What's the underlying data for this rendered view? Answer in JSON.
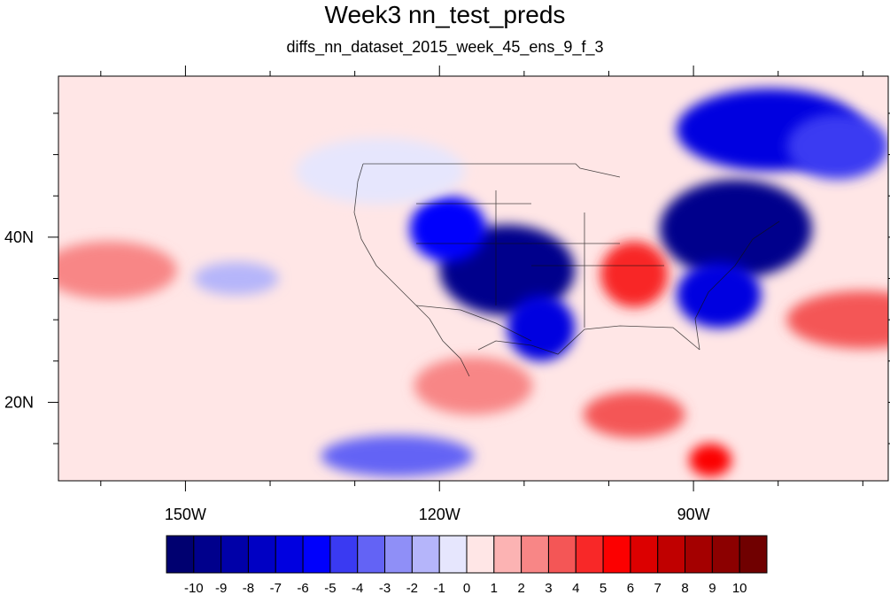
{
  "title": "Week3 nn_test_preds",
  "subtitle": "diffs_nn_dataset_2015_week_45_ens_9_f_3",
  "map": {
    "projection": "cylindrical-equidistant",
    "lon_range": [
      -165,
      -67
    ],
    "lat_range": [
      10.5,
      59.5
    ],
    "lon_ticks": [
      {
        "value": -150,
        "label": "150W"
      },
      {
        "value": -120,
        "label": "120W"
      },
      {
        "value": -90,
        "label": "90W"
      }
    ],
    "lat_ticks": [
      {
        "value": 40,
        "label": "40N"
      },
      {
        "value": 20,
        "label": "20N"
      }
    ],
    "background_value": 0.5
  },
  "colorbar": {
    "labels": [
      "-10",
      "-9",
      "-8",
      "-7",
      "-6",
      "-5",
      "-4",
      "-3",
      "-2",
      "-1",
      "0",
      "1",
      "2",
      "3",
      "4",
      "5",
      "6",
      "7",
      "8",
      "9",
      "10"
    ],
    "colors": [
      "#000070",
      "#00008c",
      "#0000a8",
      "#0000c4",
      "#0000e0",
      "#0000fc",
      "#3a3af2",
      "#6363f5",
      "#8f8ff7",
      "#b5b5fa",
      "#e6e6fd",
      "#ffe6e6",
      "#fcb3b3",
      "#f88686",
      "#f45656",
      "#f82828",
      "#fc0000",
      "#dc0000",
      "#c00000",
      "#a40000",
      "#8c0000",
      "#700000"
    ]
  },
  "anomaly_regions": [
    {
      "lon": -112,
      "lat": 36,
      "rx": 8,
      "ry": 5.5,
      "value": -10,
      "region": "southwest-us"
    },
    {
      "lon": -119,
      "lat": 41,
      "rx": 4.5,
      "ry": 4,
      "value": -6,
      "region": "great-basin"
    },
    {
      "lon": -108,
      "lat": 29,
      "rx": 4,
      "ry": 4,
      "value": -7,
      "region": "northern-mexico"
    },
    {
      "lon": -85,
      "lat": 41,
      "rx": 9,
      "ry": 6,
      "value": -10,
      "region": "great-lakes"
    },
    {
      "lon": -87,
      "lat": 33,
      "rx": 5,
      "ry": 4,
      "value": -7,
      "region": "southeast-us"
    },
    {
      "lon": -81,
      "lat": 53,
      "rx": 11,
      "ry": 5,
      "value": -7,
      "region": "hudson-bay"
    },
    {
      "lon": -73,
      "lat": 51,
      "rx": 6,
      "ry": 4,
      "value": -5,
      "region": "labrador"
    },
    {
      "lon": -97,
      "lat": 35.5,
      "rx": 4,
      "ry": 4,
      "value": 4,
      "region": "southern-plains"
    },
    {
      "lon": -159,
      "lat": 36,
      "rx": 8,
      "ry": 3.5,
      "value": 2,
      "region": "north-pacific"
    },
    {
      "lon": -116,
      "lat": 22,
      "rx": 7,
      "ry": 3.5,
      "value": 2,
      "region": "baja-offshore"
    },
    {
      "lon": -97,
      "lat": 18.5,
      "rx": 6,
      "ry": 2.8,
      "value": 3,
      "region": "southern-mexico"
    },
    {
      "lon": -88,
      "lat": 13,
      "rx": 2.5,
      "ry": 2,
      "value": 5,
      "region": "central-america"
    },
    {
      "lon": -70,
      "lat": 30,
      "rx": 9,
      "ry": 3.5,
      "value": 3,
      "region": "western-atlantic"
    },
    {
      "lon": -125,
      "lat": 13.5,
      "rx": 9,
      "ry": 2.5,
      "value": -4,
      "region": "eastern-tropical-pacific"
    },
    {
      "lon": -127,
      "lat": 48,
      "rx": 10,
      "ry": 4,
      "value": -1,
      "region": "northeast-pacific"
    },
    {
      "lon": -144,
      "lat": 35,
      "rx": 5,
      "ry": 2,
      "value": -2,
      "region": "subtropical-pacific"
    }
  ]
}
